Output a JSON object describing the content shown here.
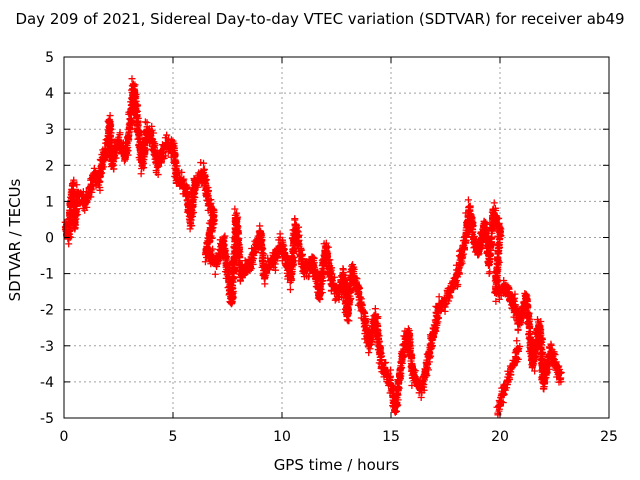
{
  "chart_data": {
    "type": "scatter",
    "title": "Day 209 of 2021, Sidereal Day-to-day VTEC variation (SDTVAR) for receiver ab49",
    "xlabel": "GPS time / hours",
    "ylabel": "SDTVAR / TECUs",
    "xlim": [
      0,
      25
    ],
    "ylim": [
      -5,
      5
    ],
    "xticks": [
      0,
      5,
      10,
      15,
      20,
      25
    ],
    "yticks": [
      -5,
      -4,
      -3,
      -2,
      -1,
      0,
      1,
      2,
      3,
      4,
      5
    ],
    "xtick_labels": [
      "0",
      "5",
      "10",
      "15",
      "20",
      "25"
    ],
    "ytick_labels": [
      "-5",
      "-4",
      "-3",
      "-2",
      "-1",
      "0",
      "1",
      "2",
      "3",
      "4",
      "5"
    ],
    "grid": true,
    "marker": "+",
    "color": "#ff0000",
    "series": [
      {
        "name": "SDTVAR",
        "trend": [
          [
            0.0,
            0.3
          ],
          [
            0.2,
            0.0
          ],
          [
            0.3,
            0.9
          ],
          [
            0.4,
            1.4
          ],
          [
            0.5,
            0.3
          ],
          [
            0.6,
            1.2
          ],
          [
            1.0,
            1.0
          ],
          [
            1.4,
            1.8
          ],
          [
            1.6,
            1.5
          ],
          [
            1.8,
            2.2
          ],
          [
            2.0,
            2.5
          ],
          [
            2.1,
            3.2
          ],
          [
            2.2,
            2.0
          ],
          [
            2.5,
            2.7
          ],
          [
            2.8,
            2.2
          ],
          [
            3.0,
            3.0
          ],
          [
            3.2,
            4.2
          ],
          [
            3.4,
            3.0
          ],
          [
            3.6,
            2.0
          ],
          [
            3.8,
            3.0
          ],
          [
            4.0,
            2.7
          ],
          [
            4.3,
            2.0
          ],
          [
            4.6,
            2.5
          ],
          [
            5.0,
            2.6
          ],
          [
            5.2,
            1.6
          ],
          [
            5.6,
            1.4
          ],
          [
            5.8,
            0.4
          ],
          [
            6.0,
            1.5
          ],
          [
            6.4,
            1.8
          ],
          [
            6.6,
            1.0
          ],
          [
            6.9,
            0.6
          ],
          [
            6.5,
            -0.4
          ],
          [
            7.0,
            -0.7
          ],
          [
            7.3,
            -0.1
          ],
          [
            7.7,
            -1.8
          ],
          [
            7.9,
            0.6
          ],
          [
            8.1,
            -1.0
          ],
          [
            8.5,
            -0.8
          ],
          [
            9.0,
            0.1
          ],
          [
            9.2,
            -1.0
          ],
          [
            9.6,
            -0.6
          ],
          [
            10.0,
            -0.2
          ],
          [
            10.4,
            -1.2
          ],
          [
            10.6,
            0.3
          ],
          [
            11.0,
            -0.9
          ],
          [
            11.4,
            -0.6
          ],
          [
            11.7,
            -1.6
          ],
          [
            12.0,
            -0.3
          ],
          [
            12.3,
            -1.3
          ],
          [
            12.6,
            -1.6
          ],
          [
            12.8,
            -1.0
          ],
          [
            13.0,
            -2.2
          ],
          [
            13.2,
            -0.9
          ],
          [
            13.5,
            -1.5
          ],
          [
            13.8,
            -2.3
          ],
          [
            14.0,
            -3.0
          ],
          [
            14.3,
            -2.2
          ],
          [
            14.6,
            -3.6
          ],
          [
            15.0,
            -4.0
          ],
          [
            15.2,
            -4.8
          ],
          [
            15.5,
            -3.3
          ],
          [
            15.8,
            -2.6
          ],
          [
            16.0,
            -3.8
          ],
          [
            16.4,
            -4.2
          ],
          [
            16.8,
            -3.1
          ],
          [
            17.2,
            -2.0
          ],
          [
            17.6,
            -1.7
          ],
          [
            18.0,
            -1.1
          ],
          [
            18.4,
            -0.1
          ],
          [
            18.6,
            0.8
          ],
          [
            18.8,
            0.0
          ],
          [
            19.0,
            -0.5
          ],
          [
            19.3,
            0.4
          ],
          [
            19.5,
            -0.7
          ],
          [
            19.7,
            0.7
          ],
          [
            20.0,
            0.2
          ],
          [
            19.8,
            -1.5
          ],
          [
            20.3,
            -1.4
          ],
          [
            20.6,
            -1.8
          ],
          [
            20.9,
            -2.4
          ],
          [
            21.2,
            -1.6
          ],
          [
            21.5,
            -3.6
          ],
          [
            21.8,
            -2.4
          ],
          [
            22.0,
            -4.1
          ],
          [
            22.3,
            -3.2
          ],
          [
            22.6,
            -3.6
          ],
          [
            22.8,
            -3.9
          ]
        ],
        "branch": [
          [
            19.9,
            -4.9
          ],
          [
            20.1,
            -4.4
          ],
          [
            20.4,
            -3.9
          ],
          [
            20.6,
            -3.5
          ],
          [
            20.9,
            -3.0
          ]
        ]
      }
    ]
  }
}
